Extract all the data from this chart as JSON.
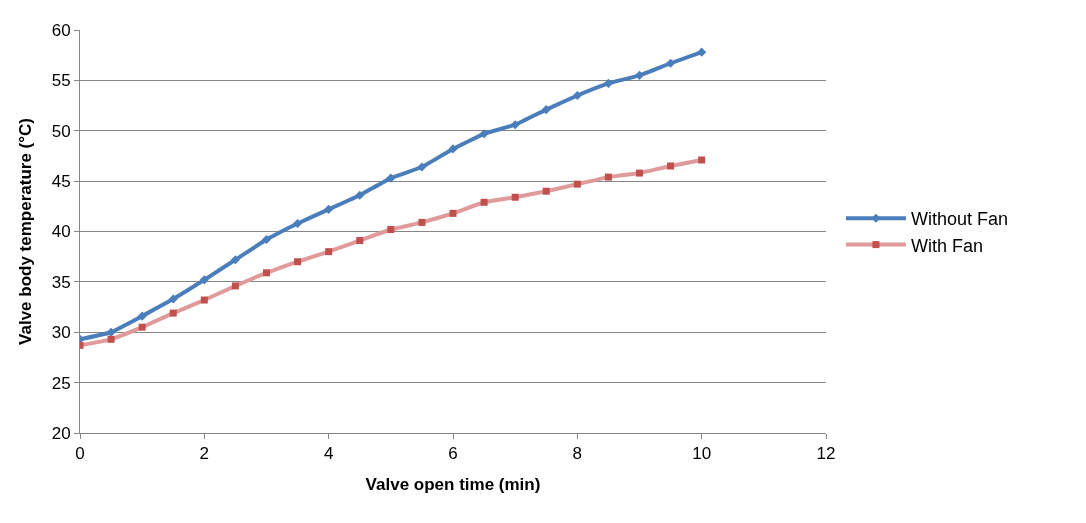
{
  "chart_data": {
    "type": "line",
    "xlabel": "Valve open time (min)",
    "ylabel": "Valve body temperature (°C)",
    "x": [
      0,
      0.5,
      1,
      1.5,
      2,
      2.5,
      3,
      3.5,
      4,
      4.5,
      5,
      5.5,
      6,
      6.5,
      7,
      7.5,
      8,
      8.5,
      9,
      9.5,
      10
    ],
    "series": [
      {
        "name": "Without Fan",
        "color": "#4a7ebb",
        "marker": "diamond",
        "values": [
          29.3,
          30,
          31.6,
          33.3,
          35.2,
          37.2,
          39.2,
          40.8,
          42.2,
          43.6,
          45.3,
          46.4,
          48.2,
          49.7,
          50.6,
          52.1,
          53.5,
          54.7,
          55.5,
          56.7,
          57.8
        ]
      },
      {
        "name": "With Fan",
        "color": "#e09a9a",
        "marker": "square",
        "values": [
          28.7,
          29.3,
          30.5,
          31.9,
          33.2,
          34.6,
          35.9,
          37,
          38,
          39.1,
          40.2,
          40.9,
          41.8,
          42.9,
          43.4,
          44,
          44.7,
          45.4,
          45.8,
          46.5,
          47.1
        ]
      }
    ],
    "xlim": [
      0,
      12
    ],
    "xticks": [
      0,
      2,
      4,
      6,
      8,
      10,
      12
    ],
    "ylim": [
      20,
      60
    ],
    "yticks": [
      20,
      25,
      30,
      35,
      40,
      45,
      50,
      55,
      60
    ],
    "grid": "y",
    "legend": "right"
  }
}
